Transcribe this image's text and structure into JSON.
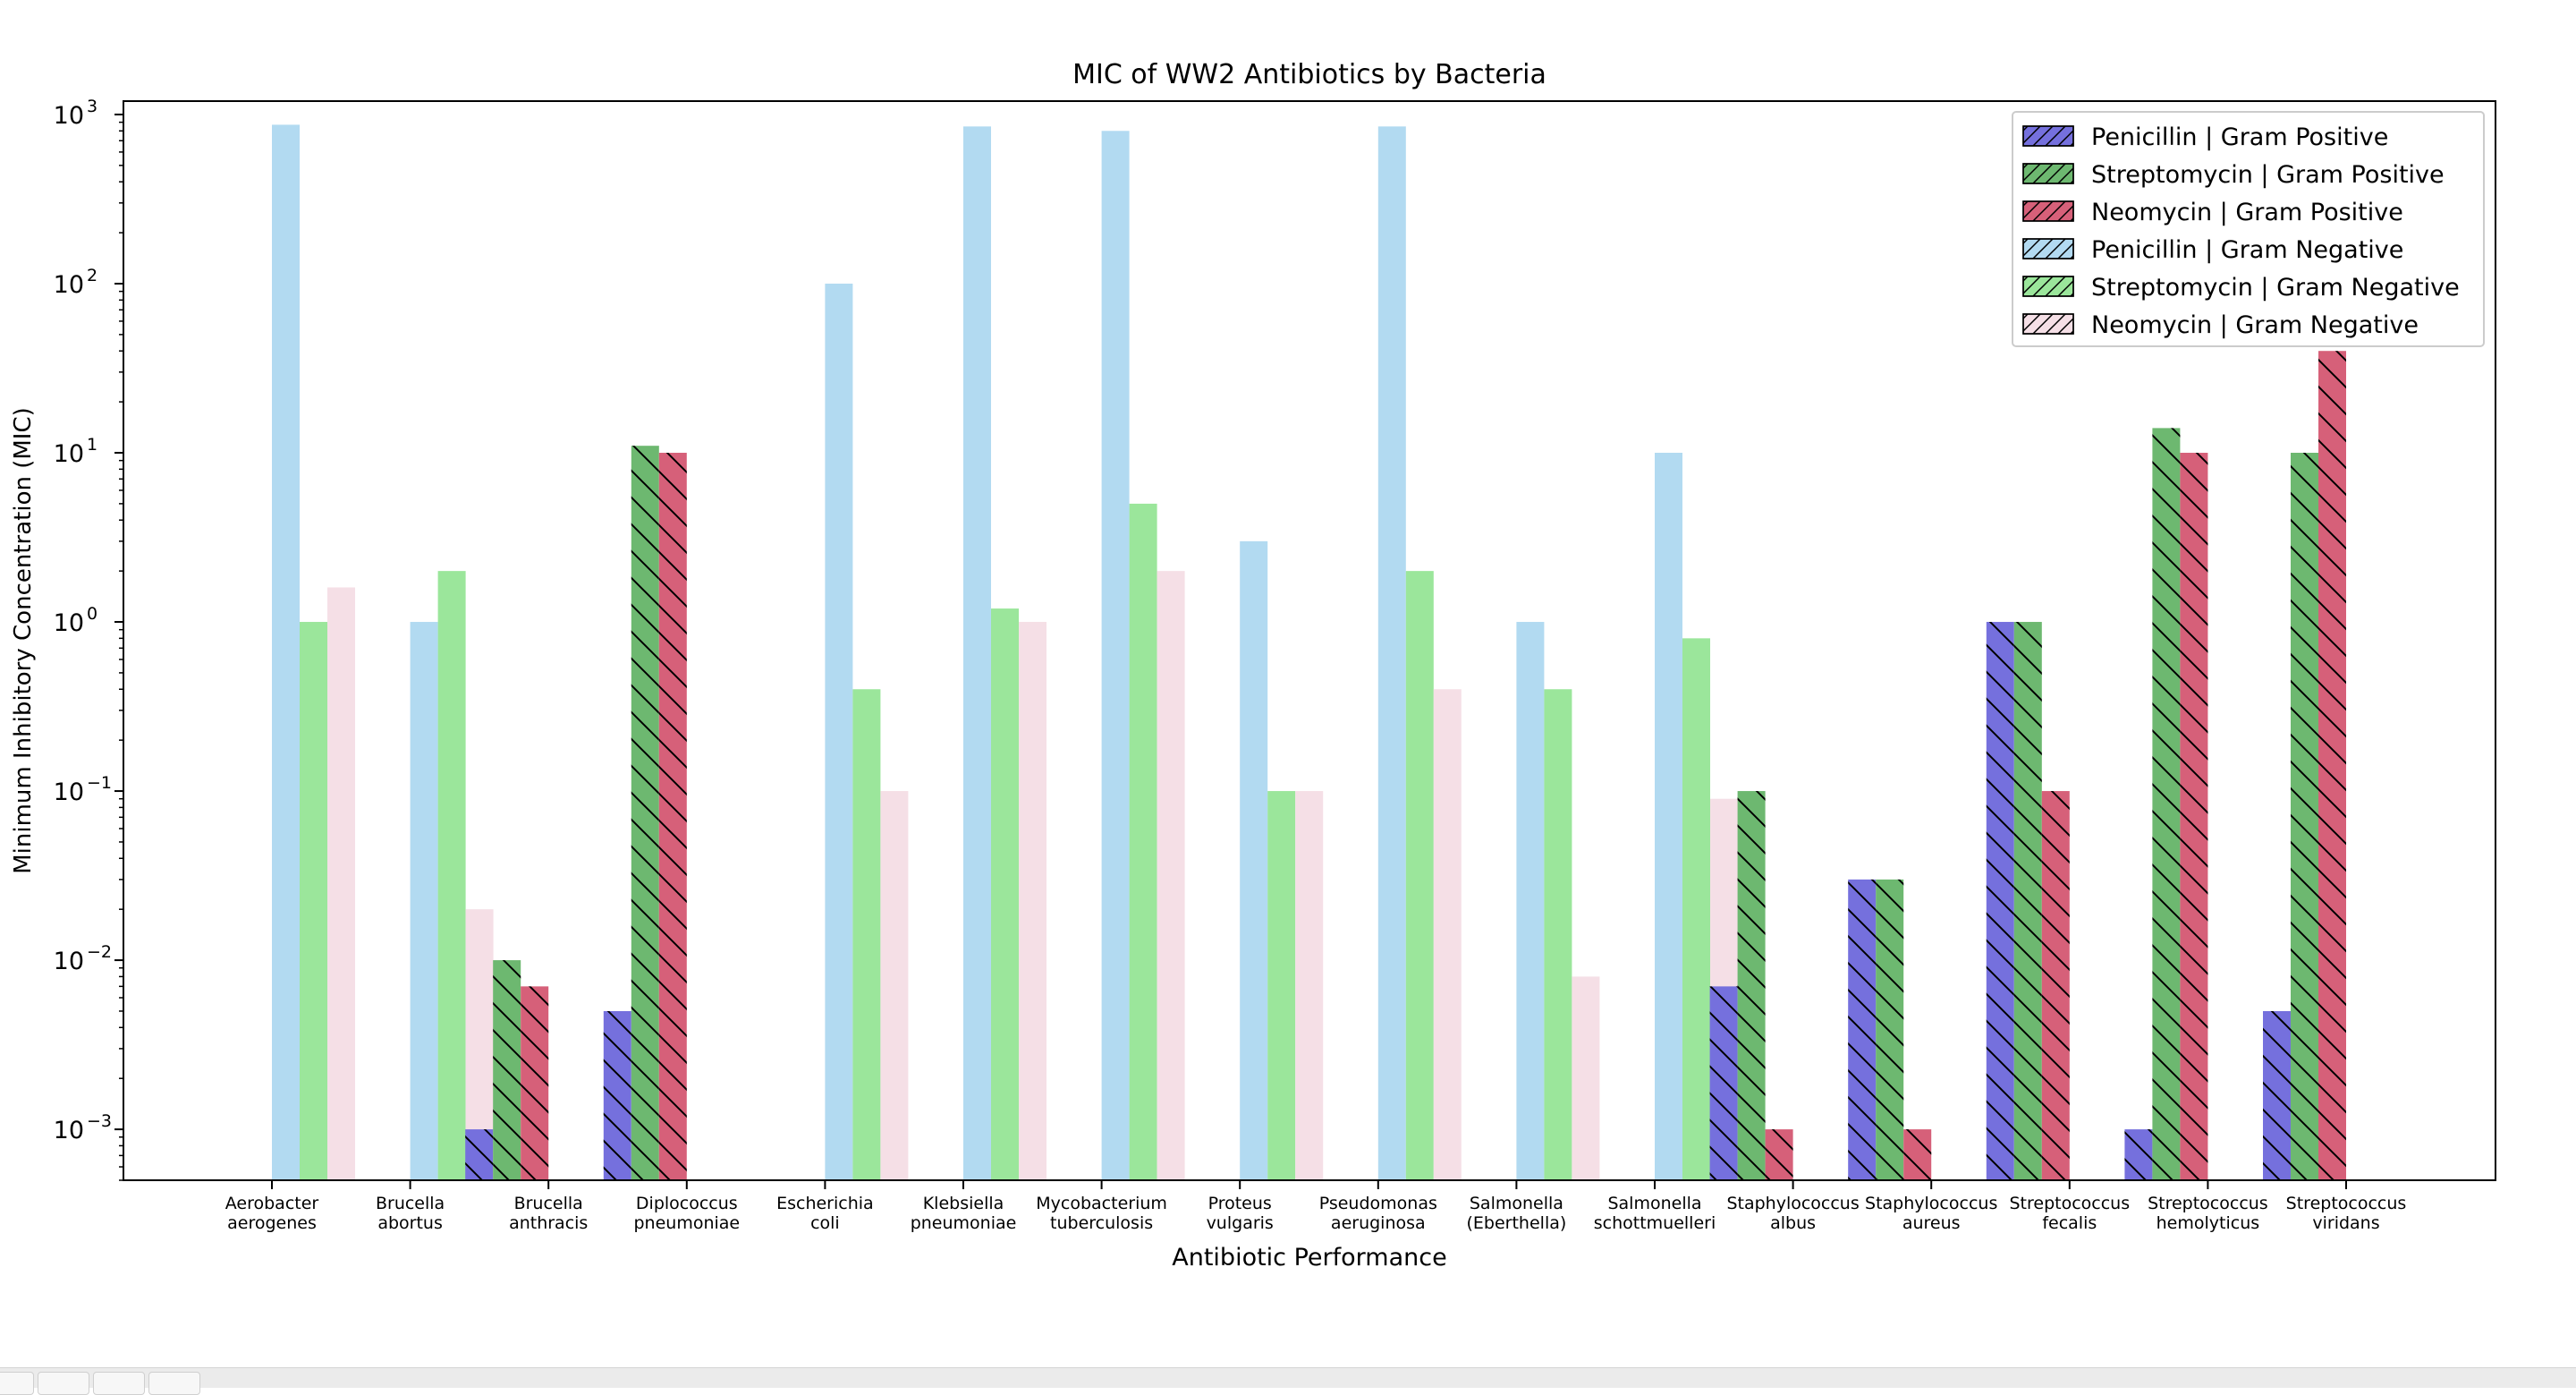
{
  "chart_data": {
    "type": "bar",
    "title": "MIC of WW2 Antibiotics by Bacteria",
    "xlabel": "Antibiotic Performance",
    "ylabel": "Minimum Inhibitory Concentration (MIC)",
    "yscale": "log",
    "ylim": [
      0.0005,
      1200
    ],
    "yticks": [
      {
        "base": "10",
        "exp": "−3"
      },
      {
        "base": "10",
        "exp": "−2"
      },
      {
        "base": "10",
        "exp": "−1"
      },
      {
        "base": "10",
        "exp": "0"
      },
      {
        "base": "10",
        "exp": "1"
      },
      {
        "base": "10",
        "exp": "2"
      },
      {
        "base": "10",
        "exp": "3"
      }
    ],
    "legend_position": "top-right",
    "categories": [
      [
        "Aerobacter",
        "aerogenes"
      ],
      [
        "Brucella",
        "abortus"
      ],
      [
        "Brucella",
        "anthracis"
      ],
      [
        "Diplococcus",
        "pneumoniae"
      ],
      [
        "Escherichia",
        "coli"
      ],
      [
        "Klebsiella",
        "pneumoniae"
      ],
      [
        "Mycobacterium",
        "tuberculosis"
      ],
      [
        "Proteus",
        "vulgaris"
      ],
      [
        "Pseudomonas",
        "aeruginosa"
      ],
      [
        "Salmonella",
        "(Eberthella)"
      ],
      [
        "Salmonella",
        "schottmuelleri"
      ],
      [
        "Staphylococcus",
        "albus"
      ],
      [
        "Staphylococcus",
        "aureus"
      ],
      [
        "Streptococcus",
        "fecalis"
      ],
      [
        "Streptococcus",
        "hemolyticus"
      ],
      [
        "Streptococcus",
        "viridans"
      ]
    ],
    "series": [
      {
        "name": "Penicillin | Gram Positive",
        "color": "#7570dd",
        "hatch": true,
        "values": [
          null,
          null,
          0.001,
          0.005,
          null,
          null,
          null,
          null,
          null,
          null,
          null,
          0.007,
          0.03,
          1,
          0.001,
          0.005
        ]
      },
      {
        "name": "Streptomycin | Gram Positive",
        "color": "#6db870",
        "hatch": true,
        "values": [
          null,
          null,
          0.01,
          11,
          null,
          null,
          null,
          null,
          null,
          null,
          null,
          0.1,
          0.03,
          1,
          14,
          10
        ]
      },
      {
        "name": "Neomycin | Gram Positive",
        "color": "#d66079",
        "hatch": true,
        "values": [
          null,
          null,
          0.007,
          10,
          null,
          null,
          null,
          null,
          null,
          null,
          null,
          0.001,
          0.001,
          0.1,
          10,
          40
        ]
      },
      {
        "name": "Penicillin | Gram Negative",
        "color": "#b2daf1",
        "hatch": false,
        "values": [
          870,
          1,
          null,
          null,
          100,
          850,
          800,
          3,
          850,
          1,
          10,
          null,
          null,
          null,
          null,
          null
        ]
      },
      {
        "name": "Streptomycin | Gram Negative",
        "color": "#9be69b",
        "hatch": false,
        "values": [
          1,
          2,
          null,
          null,
          0.4,
          1.2,
          5,
          0.1,
          2,
          0.4,
          0.8,
          null,
          null,
          null,
          null,
          null
        ]
      },
      {
        "name": "Neomycin | Gram Negative",
        "color": "#f5dfe6",
        "hatch": false,
        "values": [
          1.6,
          0.02,
          null,
          null,
          0.1,
          1,
          2,
          0.1,
          0.4,
          0.008,
          0.09,
          null,
          null,
          null,
          null,
          null
        ]
      }
    ]
  }
}
